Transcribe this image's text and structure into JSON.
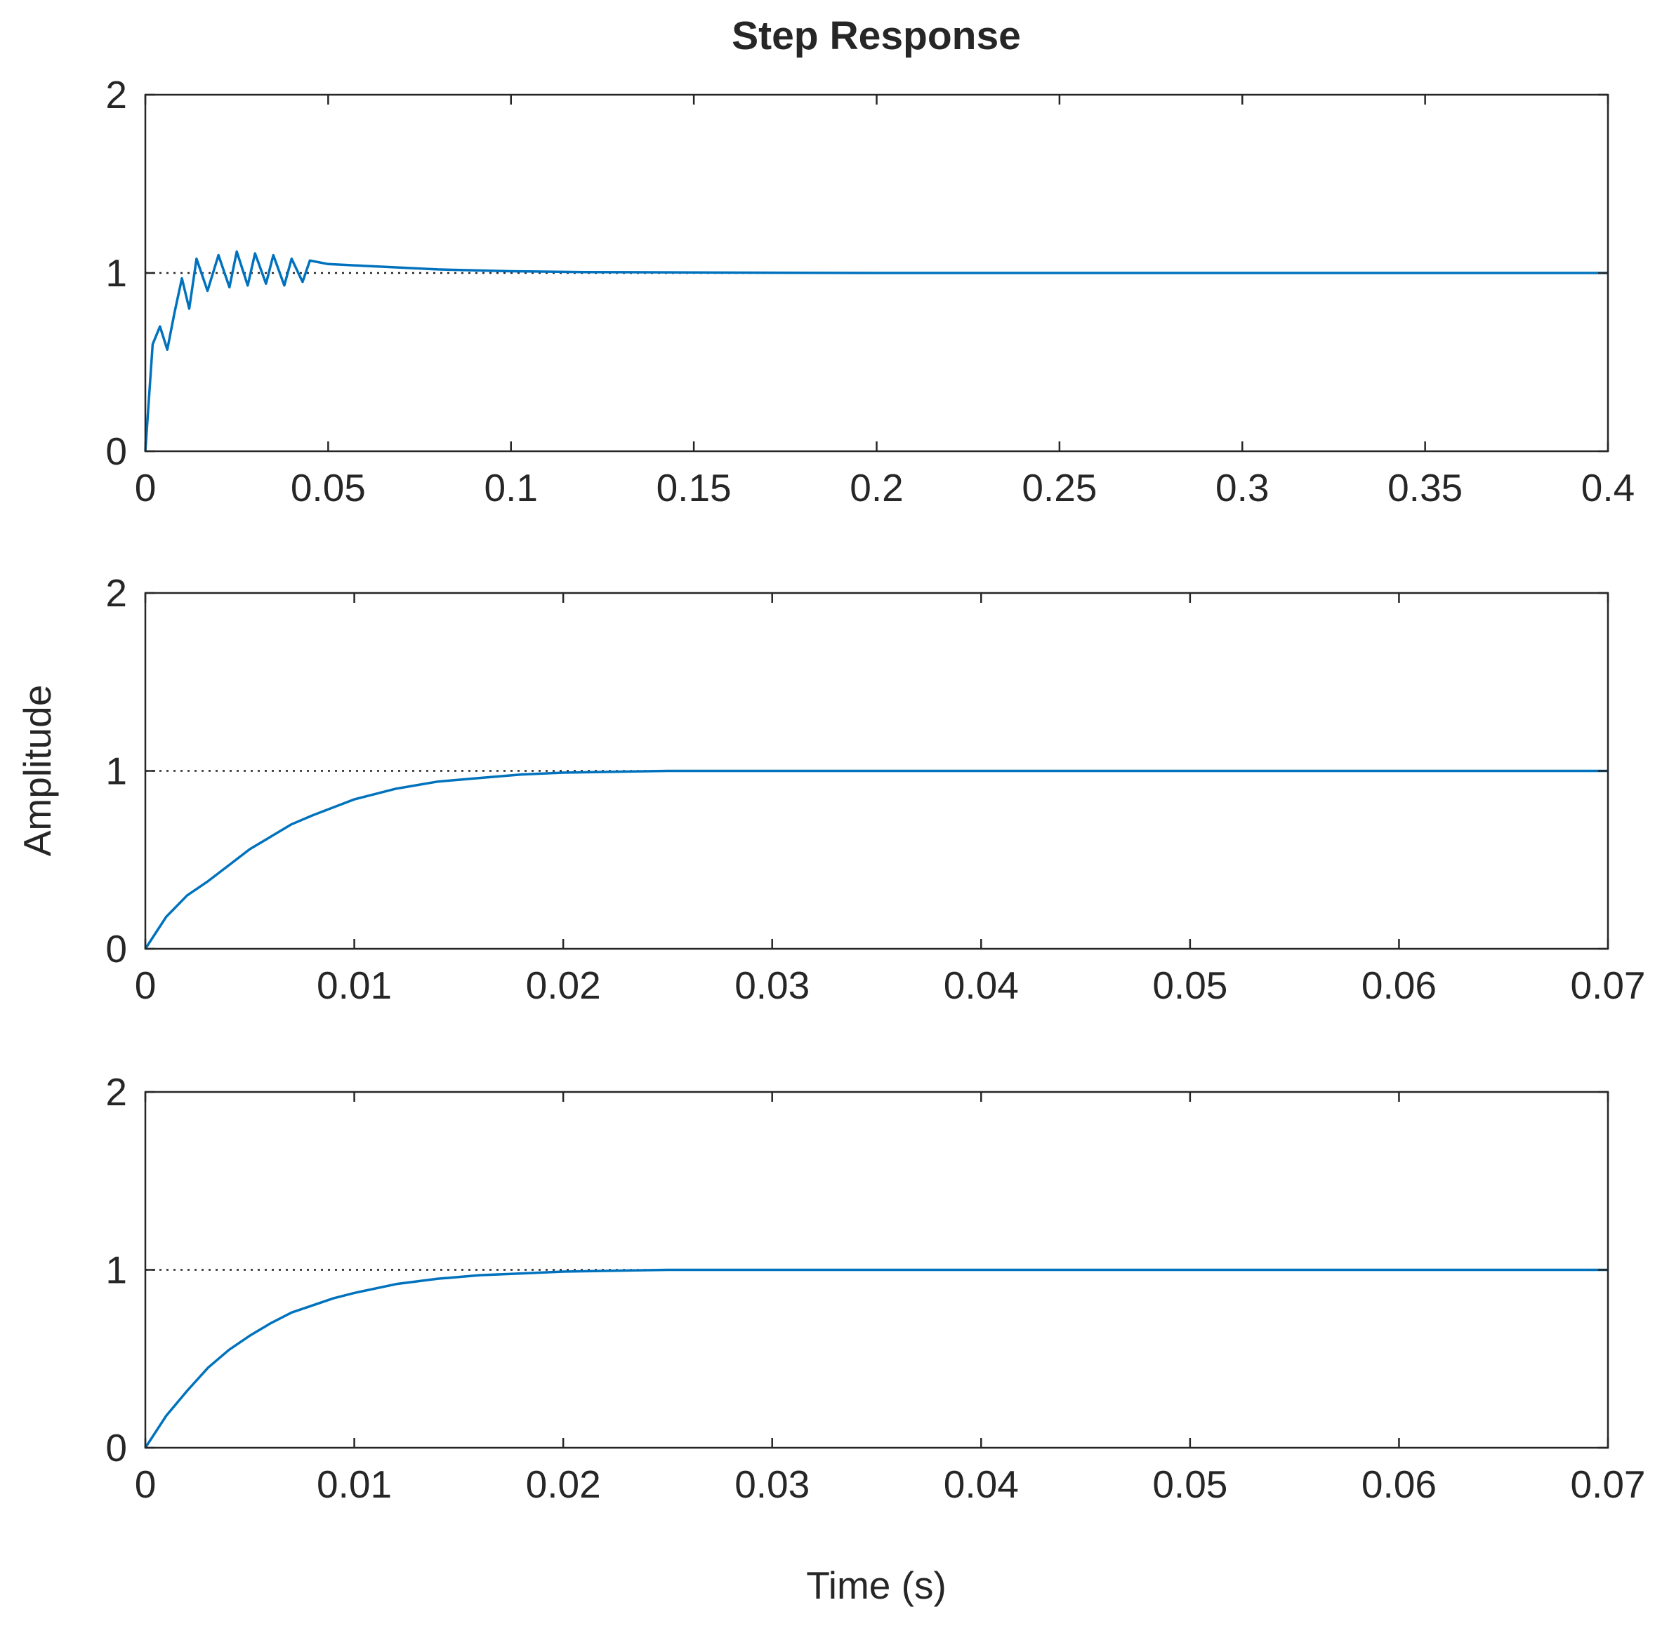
{
  "figure": {
    "title": "Step Response",
    "xlabel": "Time (s)",
    "ylabel": "Amplitude",
    "line_color": "#0072BD",
    "reference_line_color": "#262626",
    "axes_color": "#262626"
  },
  "chart_data": [
    {
      "type": "line",
      "title": "Step Response",
      "xlabel": "",
      "ylabel": "",
      "xlim": [
        0,
        0.4
      ],
      "ylim": [
        0,
        2
      ],
      "xticks": [
        0,
        0.05,
        0.1,
        0.15,
        0.2,
        0.25,
        0.3,
        0.35,
        0.4
      ],
      "xtick_labels": [
        "0",
        "0.05",
        "0.1",
        "0.15",
        "0.2",
        "0.25",
        "0.3",
        "0.35",
        "0.4"
      ],
      "yticks": [
        0,
        1,
        2
      ],
      "ytick_labels": [
        "0",
        "1",
        "2"
      ],
      "reference_line": 1,
      "grid": false,
      "series": [
        {
          "x": [
            0,
            0.002,
            0.004,
            0.006,
            0.008,
            0.01,
            0.012,
            0.014,
            0.017,
            0.02,
            0.023,
            0.025,
            0.028,
            0.03,
            0.033,
            0.035,
            0.038,
            0.04,
            0.043,
            0.045,
            0.05,
            0.06,
            0.07,
            0.08,
            0.1,
            0.12,
            0.15,
            0.2,
            0.25,
            0.3,
            0.35,
            0.4
          ],
          "y": [
            0,
            0.6,
            0.7,
            0.57,
            0.78,
            0.97,
            0.8,
            1.08,
            0.9,
            1.1,
            0.92,
            1.12,
            0.93,
            1.11,
            0.94,
            1.1,
            0.93,
            1.08,
            0.95,
            1.07,
            1.05,
            1.04,
            1.03,
            1.02,
            1.01,
            1.005,
            1.003,
            1.0,
            1.0,
            1.0,
            1.0,
            1.0
          ]
        }
      ]
    },
    {
      "type": "line",
      "title": "",
      "xlabel": "",
      "ylabel": "Amplitude",
      "xlim": [
        0,
        0.07
      ],
      "ylim": [
        0,
        2
      ],
      "xticks": [
        0,
        0.01,
        0.02,
        0.03,
        0.04,
        0.05,
        0.06,
        0.07
      ],
      "xtick_labels": [
        "0",
        "0.01",
        "0.02",
        "0.03",
        "0.04",
        "0.05",
        "0.06",
        "0.07"
      ],
      "yticks": [
        0,
        1,
        2
      ],
      "ytick_labels": [
        "0",
        "1",
        "2"
      ],
      "reference_line": 1,
      "grid": false,
      "series": [
        {
          "x": [
            0,
            0.001,
            0.002,
            0.003,
            0.004,
            0.005,
            0.006,
            0.007,
            0.008,
            0.01,
            0.012,
            0.014,
            0.016,
            0.018,
            0.02,
            0.025,
            0.03,
            0.04,
            0.05,
            0.06,
            0.07
          ],
          "y": [
            0,
            0.18,
            0.3,
            0.38,
            0.47,
            0.56,
            0.63,
            0.7,
            0.75,
            0.84,
            0.9,
            0.94,
            0.96,
            0.98,
            0.99,
            1.0,
            1.0,
            1.0,
            1.0,
            1.0,
            1.0
          ]
        }
      ]
    },
    {
      "type": "line",
      "title": "",
      "xlabel": "Time (s)",
      "ylabel": "",
      "xlim": [
        0,
        0.07
      ],
      "ylim": [
        0,
        2
      ],
      "xticks": [
        0,
        0.01,
        0.02,
        0.03,
        0.04,
        0.05,
        0.06,
        0.07
      ],
      "xtick_labels": [
        "0",
        "0.01",
        "0.02",
        "0.03",
        "0.04",
        "0.05",
        "0.06",
        "0.07"
      ],
      "yticks": [
        0,
        1,
        2
      ],
      "ytick_labels": [
        "0",
        "1",
        "2"
      ],
      "reference_line": 1,
      "grid": false,
      "series": [
        {
          "x": [
            0,
            0.001,
            0.002,
            0.003,
            0.004,
            0.005,
            0.006,
            0.007,
            0.008,
            0.009,
            0.01,
            0.012,
            0.014,
            0.016,
            0.018,
            0.02,
            0.025,
            0.03,
            0.04,
            0.05,
            0.06,
            0.07
          ],
          "y": [
            0,
            0.18,
            0.32,
            0.45,
            0.55,
            0.63,
            0.7,
            0.76,
            0.8,
            0.84,
            0.87,
            0.92,
            0.95,
            0.97,
            0.98,
            0.99,
            1.0,
            1.0,
            1.0,
            1.0,
            1.0,
            1.0
          ]
        }
      ]
    }
  ]
}
